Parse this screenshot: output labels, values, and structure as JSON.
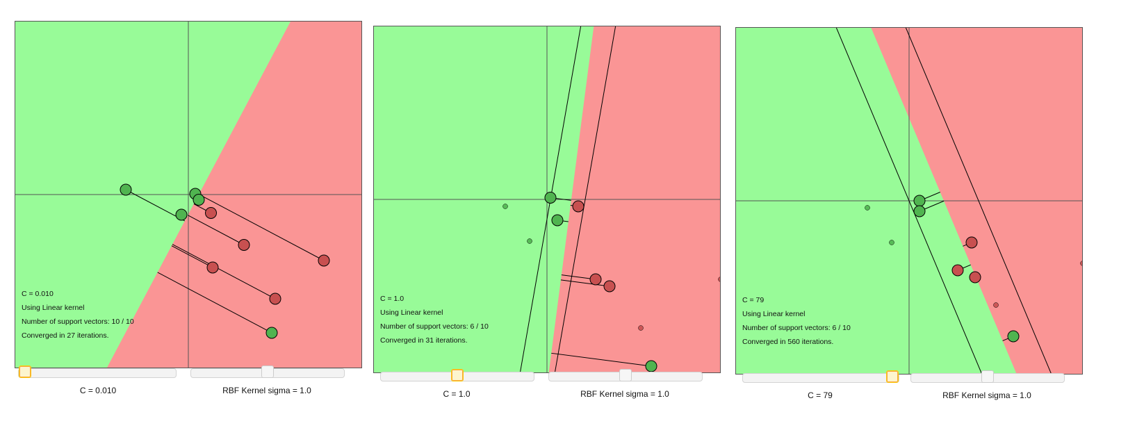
{
  "panels": [
    {
      "id": "p1",
      "c_label": "C = 0.010",
      "sigma_label": "RBF Kernel sigma = 1.0",
      "info": [
        "C = 0.010",
        "Using Linear kernel",
        "Number of support vectors: 10 / 10",
        "Converged in 27 iterations."
      ],
      "c_slider_value": 0.0,
      "sigma_slider_value": 0.5,
      "boundary": {
        "w": [
          1.0,
          -0.53
        ],
        "b": -0.3
      },
      "margins": [],
      "points": [
        {
          "x": 0.65,
          "y": -0.53,
          "label": 1,
          "sv": true,
          "alpha": 1.0
        },
        {
          "x": -1.8,
          "y": 0.14,
          "label": -1,
          "sv": true,
          "alpha": 1.0
        },
        {
          "x": 0.2,
          "y": 0.02,
          "label": -1,
          "sv": true,
          "alpha": 1.0
        },
        {
          "x": 0.3,
          "y": -0.15,
          "label": -1,
          "sv": true,
          "alpha": 1.0
        },
        {
          "x": -0.2,
          "y": -0.58,
          "label": -1,
          "sv": true,
          "alpha": 1.0
        },
        {
          "x": 1.6,
          "y": -1.45,
          "label": 1,
          "sv": true,
          "alpha": 1.0
        },
        {
          "x": 3.9,
          "y": -1.9,
          "label": 1,
          "sv": true,
          "alpha": 1.0
        },
        {
          "x": 0.7,
          "y": -2.1,
          "label": 1,
          "sv": true,
          "alpha": 1.0
        },
        {
          "x": 2.5,
          "y": -3.0,
          "label": 1,
          "sv": true,
          "alpha": 1.0
        },
        {
          "x": 2.4,
          "y": -3.98,
          "label": -1,
          "sv": true,
          "alpha": 1.0
        }
      ]
    },
    {
      "id": "p2",
      "c_label": "C = 1.0",
      "sigma_label": "RBF Kernel sigma = 1.0",
      "info": [
        "C = 1.0",
        "Using Linear kernel",
        "Number of support vectors: 6 / 10",
        "Converged in 31 iterations."
      ],
      "c_slider_value": 0.5,
      "sigma_slider_value": 0.5,
      "boundary": {
        "w": [
          1.0,
          -0.13
        ],
        "b": -0.7
      },
      "margins": [
        {
          "w": [
            1.0,
            -0.175
          ],
          "b": -0.1
        },
        {
          "w": [
            1.0,
            -0.175
          ],
          "b": -1.1
        }
      ],
      "points": [
        {
          "x": 0.9,
          "y": -0.2,
          "label": 1,
          "sv": true,
          "alpha": 1.0
        },
        {
          "x": -1.2,
          "y": -0.2,
          "label": -1,
          "sv": false,
          "alpha": 0.9
        },
        {
          "x": 0.3,
          "y": -0.6,
          "label": -1,
          "sv": true,
          "alpha": 1.0
        },
        {
          "x": 0.1,
          "y": 0.05,
          "label": -1,
          "sv": true,
          "alpha": 1.0
        },
        {
          "x": -0.5,
          "y": -1.2,
          "label": -1,
          "sv": false,
          "alpha": 0.9
        },
        {
          "x": 1.4,
          "y": -2.3,
          "label": 1,
          "sv": true,
          "alpha": 1.0
        },
        {
          "x": 1.8,
          "y": -2.5,
          "label": 1,
          "sv": true,
          "alpha": 1.0
        },
        {
          "x": 5.0,
          "y": -2.3,
          "label": 1,
          "sv": false,
          "alpha": 0.9
        },
        {
          "x": 2.7,
          "y": -3.7,
          "label": 1,
          "sv": false,
          "alpha": 0.9
        },
        {
          "x": 3.0,
          "y": -4.8,
          "label": -1,
          "sv": true,
          "alpha": 1.0
        }
      ]
    },
    {
      "id": "p3",
      "c_label": "C = 79",
      "sigma_label": "RBF Kernel sigma = 1.0",
      "info": [
        "C = 79",
        "Using Linear kernel",
        "Number of support vectors: 6 / 10",
        "Converged in 560 iterations."
      ],
      "c_slider_value": 1.0,
      "sigma_slider_value": 0.5,
      "boundary": {
        "w": [
          1.0,
          0.42
        ],
        "b": -1.0
      },
      "margins": [
        {
          "w": [
            1.0,
            0.42
          ],
          "b": 0.0
        },
        {
          "w": [
            1.0,
            0.42
          ],
          "b": -2.0
        }
      ],
      "points": [
        {
          "x": 0.3,
          "y": 0.0,
          "label": -1,
          "sv": true,
          "alpha": 1.0
        },
        {
          "x": -1.2,
          "y": -0.2,
          "label": -1,
          "sv": false,
          "alpha": 0.9
        },
        {
          "x": 0.3,
          "y": -0.3,
          "label": -1,
          "sv": true,
          "alpha": 1.0
        },
        {
          "x": -0.5,
          "y": -1.2,
          "label": -1,
          "sv": false,
          "alpha": 0.9
        },
        {
          "x": 1.8,
          "y": -1.2,
          "label": 1,
          "sv": true,
          "alpha": 1.0
        },
        {
          "x": 1.9,
          "y": -2.2,
          "label": 1,
          "sv": true,
          "alpha": 1.0
        },
        {
          "x": 1.4,
          "y": -2.0,
          "label": 1,
          "sv": true,
          "alpha": 1.0
        },
        {
          "x": 5.0,
          "y": -1.8,
          "label": 1,
          "sv": false,
          "alpha": 0.9
        },
        {
          "x": 2.5,
          "y": -3.0,
          "label": 1,
          "sv": false,
          "alpha": 0.9
        },
        {
          "x": 3.0,
          "y": -3.9,
          "label": -1,
          "sv": true,
          "alpha": 1.0
        }
      ]
    }
  ],
  "colors": {
    "positive_region": "#fa9595",
    "negative_region": "#98fb98",
    "positive_point": "#c85050",
    "negative_point": "#50b450",
    "axis": "#555555",
    "line": "#000000"
  }
}
